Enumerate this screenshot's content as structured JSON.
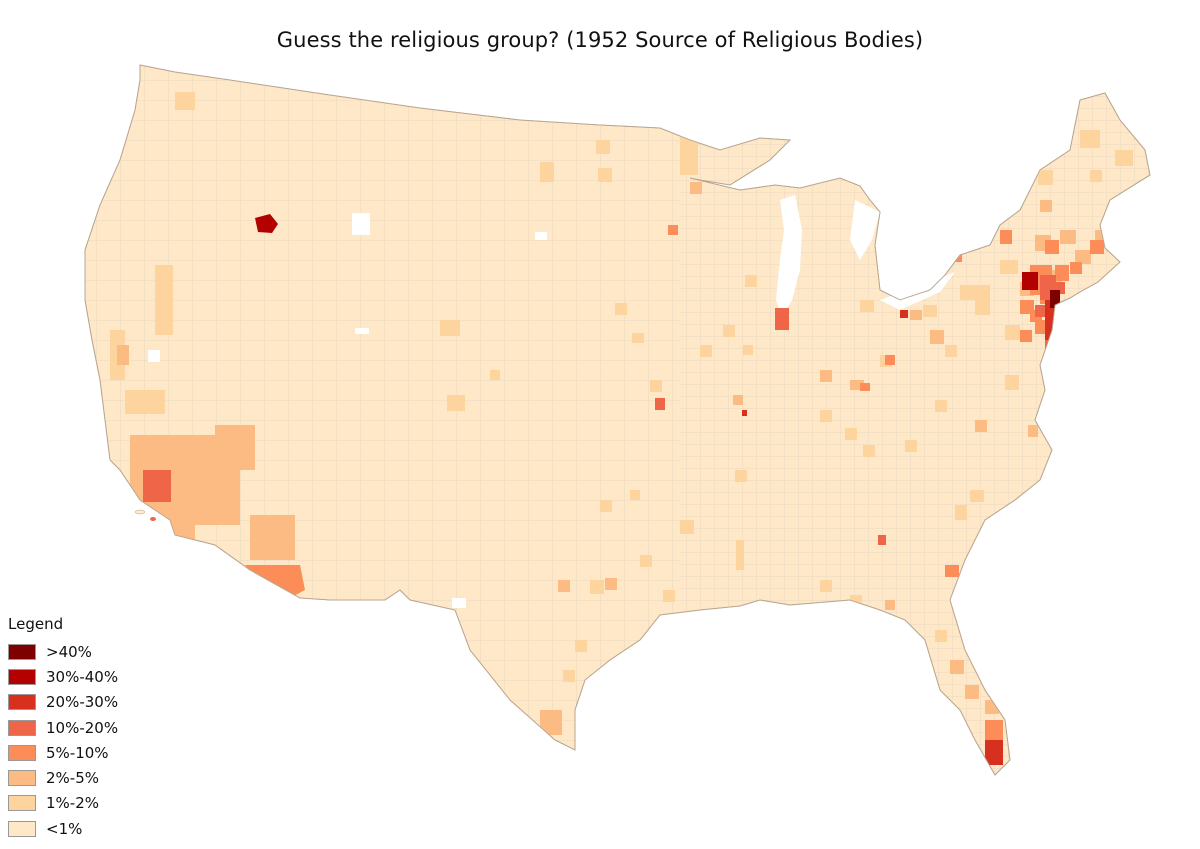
{
  "title": "Guess the religious group? (1952 Source of Religious Bodies)",
  "legend": {
    "title": "Legend",
    "items": [
      {
        "label": ">40%",
        "color": "#7f0000"
      },
      {
        "label": "30%-40%",
        "color": "#b30000"
      },
      {
        "label": "20%-30%",
        "color": "#d7301f"
      },
      {
        "label": "10%-20%",
        "color": "#ef6548"
      },
      {
        "label": "5%-10%",
        "color": "#fc8d59"
      },
      {
        "label": "2%-5%",
        "color": "#fdbb84"
      },
      {
        "label": "1%-2%",
        "color": "#fdd49e"
      },
      {
        "label": "<1%",
        "color": "#fee8c8"
      }
    ]
  },
  "map": {
    "base_color": "#fee8c8",
    "no_data_color": "#ffffff",
    "border_color": "#c9bba8"
  }
}
